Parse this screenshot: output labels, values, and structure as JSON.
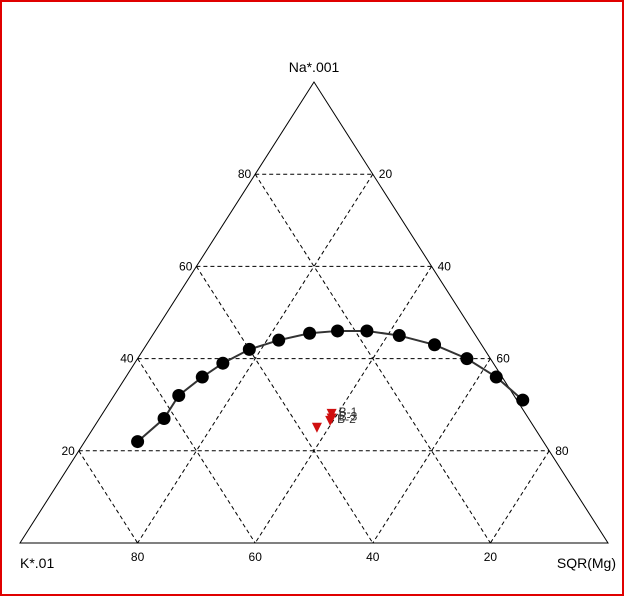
{
  "chart_data": {
    "type": "ternary",
    "vertex_labels": {
      "top": "Na*.001",
      "left": "K*.01",
      "right": "SQR(Mg)"
    },
    "grid": true,
    "grid_levels": [
      20,
      40,
      60,
      80
    ],
    "tick_labels": {
      "left_edge": [
        "20",
        "40",
        "60",
        "80"
      ],
      "right_edge": [
        "20",
        "40",
        "60",
        "80"
      ],
      "bottom_edge": [
        "80",
        "60",
        "40",
        "20"
      ]
    },
    "equilibrium_curve": {
      "type": "line+markers",
      "color": "#000000",
      "points": [
        {
          "na": 22,
          "k": 69,
          "mg": 9
        },
        {
          "na": 27,
          "k": 62,
          "mg": 11
        },
        {
          "na": 32,
          "k": 57,
          "mg": 11
        },
        {
          "na": 36,
          "k": 51,
          "mg": 13
        },
        {
          "na": 39,
          "k": 46,
          "mg": 15
        },
        {
          "na": 42,
          "k": 40,
          "mg": 18
        },
        {
          "na": 44,
          "k": 34,
          "mg": 22
        },
        {
          "na": 45.5,
          "k": 28,
          "mg": 26.5
        },
        {
          "na": 46,
          "k": 23,
          "mg": 31
        },
        {
          "na": 46,
          "k": 18,
          "mg": 36
        },
        {
          "na": 45,
          "k": 13,
          "mg": 42
        },
        {
          "na": 43,
          "k": 8,
          "mg": 49
        },
        {
          "na": 40,
          "k": 4,
          "mg": 56
        },
        {
          "na": 36,
          "k": 1,
          "mg": 63
        },
        {
          "na": 31,
          "k": -1,
          "mg": 70
        }
      ]
    },
    "samples": {
      "color": "#d01010",
      "points": [
        {
          "label": "B-1",
          "na": 28,
          "k": 33,
          "mg": 39
        },
        {
          "label": "B-2",
          "na": 26.5,
          "k": 34,
          "mg": 39.5
        },
        {
          "label": "B-3",
          "na": 27,
          "k": 33.5,
          "mg": 39.5
        },
        {
          "label": "",
          "na": 25,
          "k": 37,
          "mg": 38
        }
      ]
    }
  }
}
